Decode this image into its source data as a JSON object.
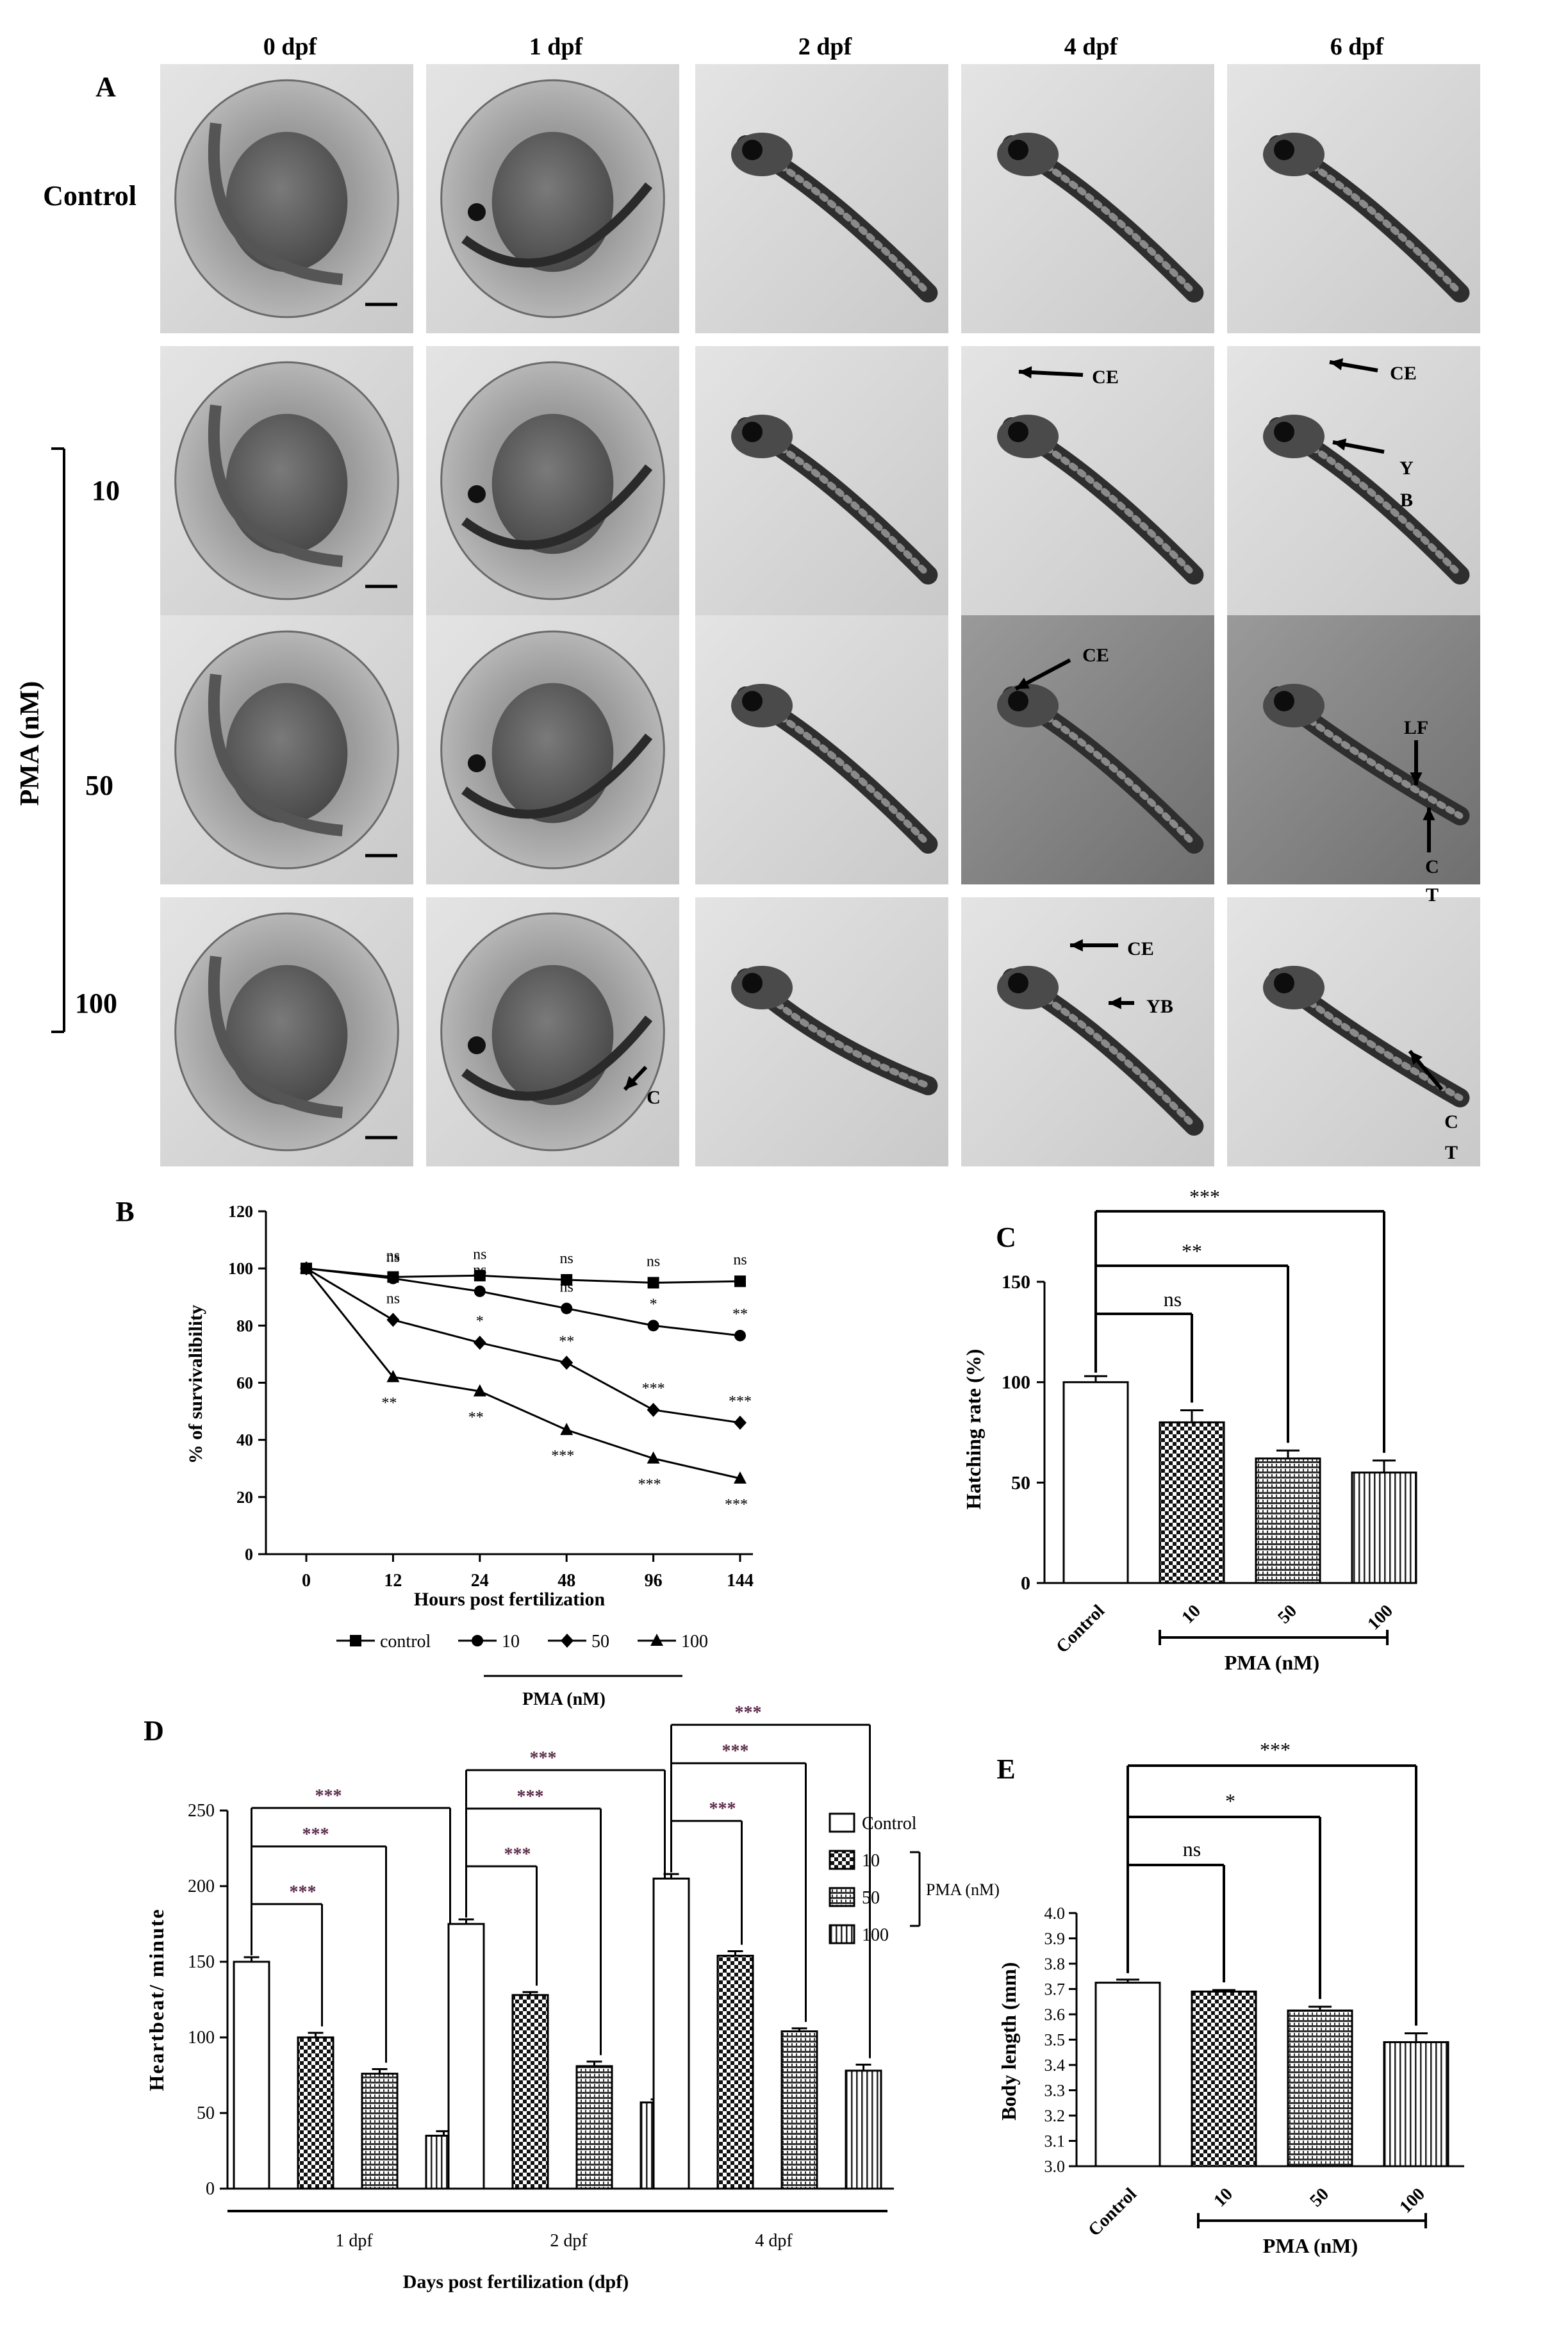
{
  "panelA": {
    "label": "A",
    "day_headers": [
      "0 dpf",
      "1 dpf",
      "2 dpf",
      "4 dpf",
      "6 dpf"
    ],
    "rows": [
      "Control",
      "10",
      "50",
      "100"
    ],
    "group_label": "PMA (nM)",
    "annotations": [
      {
        "row": 1,
        "col": 3,
        "texts": [
          "CE"
        ]
      },
      {
        "row": 1,
        "col": 4,
        "texts": [
          "CE",
          "Y",
          "B"
        ]
      },
      {
        "row": 2,
        "col": 3,
        "texts": [
          "CE"
        ]
      },
      {
        "row": 2,
        "col": 4,
        "texts": [
          "LF",
          "C",
          "T"
        ]
      },
      {
        "row": 3,
        "col": 1,
        "texts": [
          "C"
        ]
      },
      {
        "row": 3,
        "col": 3,
        "texts": [
          "CE",
          "YB"
        ]
      },
      {
        "row": 3,
        "col": 4,
        "texts": [
          "C",
          "T"
        ]
      }
    ]
  },
  "panelB": {
    "label": "B",
    "chart_data": {
      "type": "line",
      "x": [
        "0",
        "12",
        "24",
        "48",
        "96",
        "144"
      ],
      "xlabel": "Hours post fertilization",
      "ylabel": "% of survivalibility",
      "ylim": [
        0,
        120
      ],
      "yticks": [
        "0",
        "20",
        "40",
        "60",
        "80",
        "100",
        "120"
      ],
      "series": [
        {
          "name": "control",
          "marker": "square",
          "values": [
            100,
            97,
            97.5,
            96,
            95,
            95.5
          ],
          "sig": [
            "",
            "ns",
            "ns",
            "ns",
            "ns",
            "ns"
          ]
        },
        {
          "name": "10",
          "marker": "circle",
          "values": [
            100,
            96.5,
            92,
            86,
            80,
            76.5
          ],
          "sig": [
            "",
            "ns",
            "ns",
            "ns",
            "*",
            "**"
          ]
        },
        {
          "name": "50",
          "marker": "diamond",
          "values": [
            100,
            82,
            74,
            67,
            50.5,
            46
          ],
          "sig": [
            "",
            "ns",
            "*",
            "**",
            "***",
            "***"
          ]
        },
        {
          "name": "100",
          "marker": "triangle",
          "values": [
            100,
            62,
            57,
            43.5,
            33.5,
            26.5
          ],
          "sig": [
            "",
            "**",
            "**",
            "***",
            "***",
            "***"
          ]
        }
      ],
      "legend_group": "PMA (nM)"
    }
  },
  "panelC": {
    "label": "C",
    "chart_data": {
      "type": "bar",
      "categories": [
        "Control",
        "10",
        "50",
        "100"
      ],
      "values": [
        100,
        80,
        62,
        55
      ],
      "errors": [
        3,
        6,
        4,
        6
      ],
      "ylabel": "Hatching rate (%)",
      "ylim": [
        0,
        150
      ],
      "yticks": [
        "0",
        "50",
        "100",
        "150"
      ],
      "group_label": "PMA (nM)",
      "significance": [
        "ns",
        "**",
        "***"
      ]
    }
  },
  "panelD": {
    "label": "D",
    "chart_data": {
      "type": "bar",
      "groups": [
        "1 dpf",
        "2 dpf",
        "4 dpf"
      ],
      "series": [
        {
          "name": "Control",
          "values": [
            150,
            175,
            205
          ]
        },
        {
          "name": "10",
          "values": [
            100,
            128,
            154
          ]
        },
        {
          "name": "50",
          "values": [
            76,
            81,
            104
          ]
        },
        {
          "name": "100",
          "values": [
            35,
            57,
            78
          ]
        }
      ],
      "errors": [
        [
          3,
          3,
          3
        ],
        [
          3,
          2,
          3
        ],
        [
          3,
          3,
          2
        ],
        [
          3,
          2,
          4
        ]
      ],
      "ylabel": "Heartbeat/ minute",
      "xlabel": "Days post fertilization (dpf)",
      "ylim": [
        0,
        250
      ],
      "yticks": [
        "0",
        "50",
        "100",
        "150",
        "200",
        "250"
      ],
      "legend_group": "PMA (nM)",
      "significance": "***"
    }
  },
  "panelE": {
    "label": "E",
    "chart_data": {
      "type": "bar",
      "categories": [
        "Control",
        "10",
        "50",
        "100"
      ],
      "values": [
        3.725,
        3.69,
        3.615,
        3.49
      ],
      "errors": [
        0.012,
        0.006,
        0.015,
        0.035
      ],
      "ylabel": "Body length (mm)",
      "ylim": [
        3.0,
        4.0
      ],
      "yticks": [
        "3.0",
        "3.1",
        "3.2",
        "3.3",
        "3.4",
        "3.5",
        "3.6",
        "3.7",
        "3.8",
        "3.9",
        "4.0"
      ],
      "group_label": "PMA (nM)",
      "significance": [
        "ns",
        "*",
        "***"
      ]
    }
  }
}
